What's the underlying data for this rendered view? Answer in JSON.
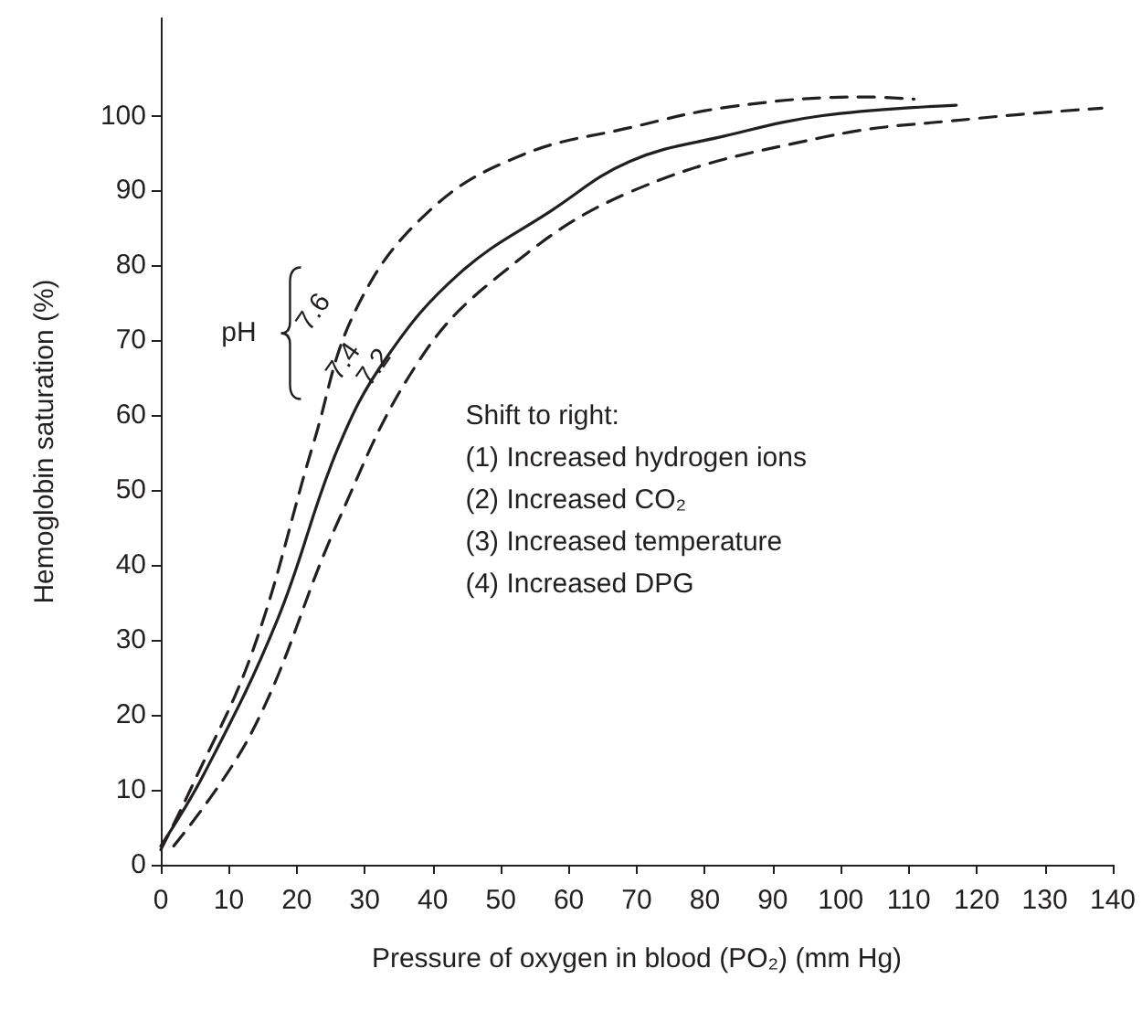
{
  "chart_data": {
    "type": "line",
    "xlabel": "Pressure of oxygen in blood (PO₂) (mm Hg)",
    "ylabel": "Hemoglobin saturation (%)",
    "xlim": [
      0,
      140
    ],
    "xticks": [
      0,
      10,
      20,
      30,
      40,
      50,
      60,
      70,
      80,
      90,
      100,
      110,
      120,
      130,
      140
    ],
    "ylim": [
      0,
      113
    ],
    "yticks": [
      0,
      10,
      20,
      30,
      40,
      50,
      60,
      70,
      80,
      90,
      100
    ],
    "grid": false,
    "legend": false,
    "marker": "none",
    "series": [
      {
        "name": "7.6",
        "color": "#231f20",
        "line_style": "dashed",
        "x": [
          0,
          4.6,
          13.5,
          22.5,
          28.8,
          39.5,
          53,
          69,
          83.9,
          103.5,
          110.8
        ],
        "values": [
          2,
          10.5,
          28.5,
          56.4,
          74.3,
          87.3,
          94.7,
          98.4,
          101.2,
          102.5,
          102.2
        ]
      },
      {
        "name": "7.4",
        "color": "#231f20",
        "line_style": "solid",
        "x": [
          0,
          6.4,
          17.1,
          26,
          33.2,
          44,
          57.4,
          69,
          83,
          97.3,
          117
        ],
        "values": [
          2.5,
          12.2,
          32.6,
          55.5,
          67.7,
          79,
          87.3,
          93.9,
          97.3,
          100,
          101.4
        ]
      },
      {
        "name": "7.2",
        "color": "#231f20",
        "line_style": "dashed",
        "x": [
          1.9,
          13.5,
          26,
          37.7,
          49.4,
          69,
          97.3,
          119.7,
          138.4
        ],
        "values": [
          2.5,
          17.9,
          45.7,
          66.9,
          78.4,
          89.8,
          97.1,
          99.6,
          101
        ]
      }
    ],
    "annotations": [
      "pH",
      "Shift to right:",
      "(1) Increased hydrogen ions",
      "(2) Increased CO₂",
      "(3) Increased temperature",
      "(4) Increased DPG"
    ]
  }
}
